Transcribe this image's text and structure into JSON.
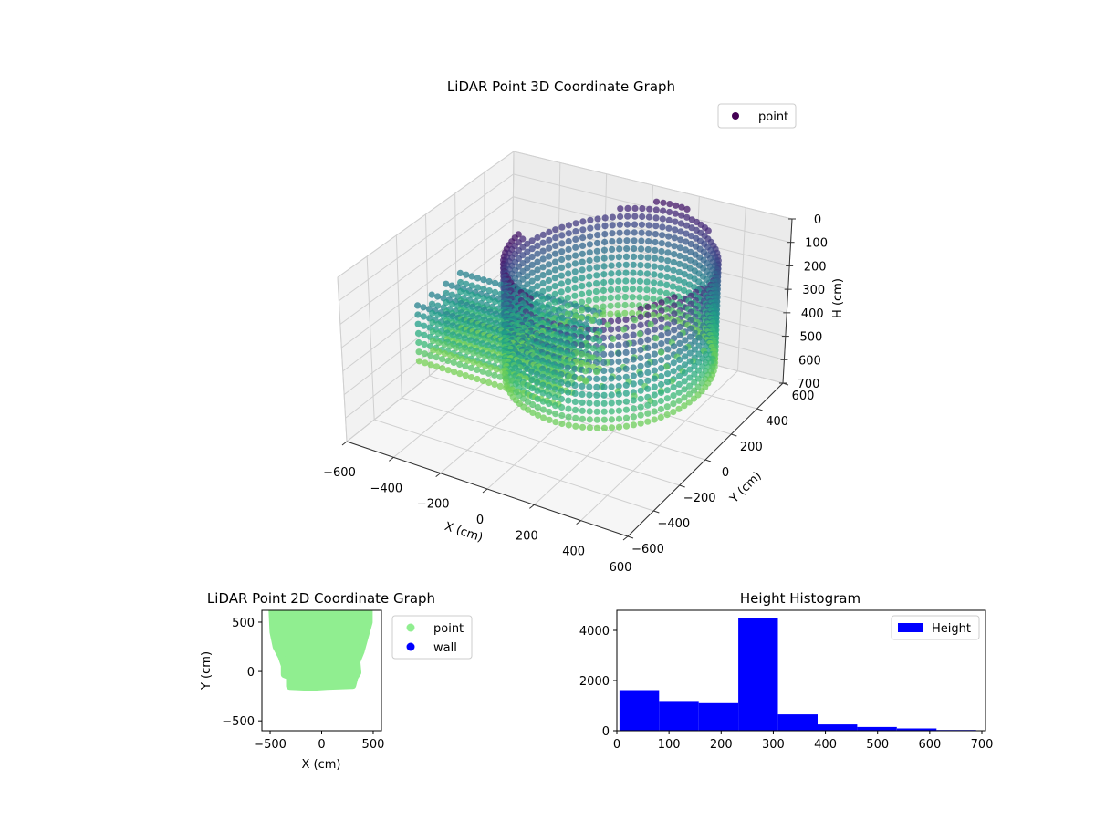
{
  "chart_data": [
    {
      "type": "scatter3d",
      "title": "LiDAR Point 3D Coordinate Graph",
      "xlabel": "X (cm)",
      "ylabel": "Y (cm)",
      "zlabel": "H (cm)",
      "xlim": [
        -600,
        600
      ],
      "ylim": [
        -600,
        600
      ],
      "zlim": [
        700,
        0
      ],
      "x_ticks": [
        -600,
        -400,
        -200,
        0,
        200,
        400,
        600
      ],
      "y_ticks": [
        -600,
        -400,
        -200,
        0,
        200,
        400,
        600
      ],
      "z_ticks": [
        0,
        100,
        200,
        300,
        400,
        500,
        600,
        700
      ],
      "colormap": "viridis",
      "grid": true,
      "legend": {
        "placement": "top-right",
        "entries": [
          {
            "name": "point",
            "color": "#440154"
          }
        ]
      },
      "series": [
        {
          "name": "point"
        }
      ]
    },
    {
      "type": "scatter",
      "title": "LiDAR Point 2D Coordinate Graph",
      "xlabel": "X (cm)",
      "ylabel": "Y (cm)",
      "xlim": [
        -580,
        580
      ],
      "ylim": [
        -600,
        620
      ],
      "x_ticks": [
        -500,
        0,
        500
      ],
      "y_ticks": [
        -500,
        0,
        500
      ],
      "legend": {
        "placement": "outside-right",
        "entries": [
          {
            "name": "point",
            "color": "#90ee90"
          },
          {
            "name": "wall",
            "color": "#0000ff"
          }
        ]
      },
      "series": [
        {
          "name": "point",
          "color": "#90ee90",
          "outline": [
            [
              -480,
              620
            ],
            [
              -470,
              400
            ],
            [
              -440,
              250
            ],
            [
              -390,
              150
            ],
            [
              -360,
              60
            ],
            [
              -360,
              -30
            ],
            [
              -310,
              -50
            ],
            [
              -310,
              -150
            ],
            [
              -100,
              -160
            ],
            [
              50,
              -150
            ],
            [
              300,
              -140
            ],
            [
              320,
              -60
            ],
            [
              350,
              -10
            ],
            [
              340,
              100
            ],
            [
              380,
              200
            ],
            [
              420,
              350
            ],
            [
              460,
              500
            ],
            [
              460,
              620
            ]
          ]
        },
        {
          "name": "wall",
          "color": "#0000ff"
        }
      ]
    },
    {
      "type": "bar",
      "title": "Height Histogram",
      "xlim": [
        0,
        707
      ],
      "ylim": [
        0,
        4800
      ],
      "x_ticks": [
        0,
        100,
        200,
        300,
        400,
        500,
        600,
        700
      ],
      "y_ticks": [
        0,
        2000,
        4000
      ],
      "legend": {
        "placement": "top-right",
        "entries": [
          {
            "name": "Height",
            "color": "#0000ff"
          }
        ]
      },
      "series": [
        {
          "name": "Height",
          "color": "#0000ff",
          "bins": [
            {
              "x0": 5,
              "x1": 81,
              "value": 1620
            },
            {
              "x0": 81,
              "x1": 157,
              "value": 1150
            },
            {
              "x0": 157,
              "x1": 233,
              "value": 1100
            },
            {
              "x0": 233,
              "x1": 309,
              "value": 4500
            },
            {
              "x0": 309,
              "x1": 385,
              "value": 650
            },
            {
              "x0": 385,
              "x1": 461,
              "value": 250
            },
            {
              "x0": 461,
              "x1": 537,
              "value": 150
            },
            {
              "x0": 537,
              "x1": 613,
              "value": 90
            },
            {
              "x0": 613,
              "x1": 689,
              "value": 30
            }
          ]
        }
      ]
    }
  ]
}
